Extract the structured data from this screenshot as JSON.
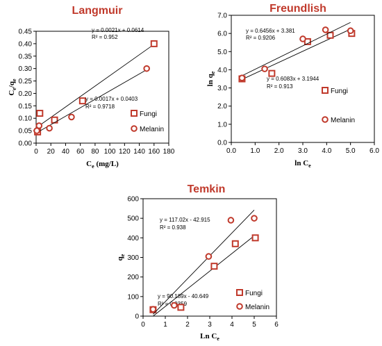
{
  "chart_data": [
    {
      "type": "scatter",
      "title": "Langmuir",
      "xlabel": "Ce (mg/L)",
      "ylabel": "Ce/qe",
      "xlim": [
        0,
        180
      ],
      "ylim": [
        0,
        0.45
      ],
      "xticks": [
        "0",
        "20",
        "40",
        "60",
        "80",
        "100",
        "120",
        "140",
        "160",
        "180"
      ],
      "yticks": [
        "0.00",
        "0.05",
        "0.10",
        "0.15",
        "0.20",
        "0.25",
        "0.30",
        "0.35",
        "0.40",
        "0.45"
      ],
      "legend_position": "bottom-right",
      "series": [
        {
          "name": "Fungi",
          "marker": "square",
          "x": [
            2,
            5,
            25,
            63,
            160
          ],
          "y": [
            0.045,
            0.12,
            0.093,
            0.17,
            0.4
          ],
          "fit": {
            "slope": 0.0021,
            "intercept": 0.0614,
            "equation": "y = 0.0021x + 0.0614",
            "r2": "R² = 0.952"
          }
        },
        {
          "name": "Melanin",
          "marker": "circle",
          "x": [
            1,
            4,
            18,
            48,
            150
          ],
          "y": [
            0.05,
            0.07,
            0.06,
            0.105,
            0.3
          ],
          "fit": {
            "slope": 0.0017,
            "intercept": 0.0403,
            "equation": "y = 0.0017x + 0.0403",
            "r2": "R² = 0.9718"
          }
        }
      ]
    },
    {
      "type": "scatter",
      "title": "Freundlish",
      "xlabel": "ln Ce",
      "ylabel": "ln qe",
      "xlim": [
        0,
        6
      ],
      "ylim": [
        0,
        7
      ],
      "xticks": [
        "0.0",
        "1.0",
        "2.0",
        "3.0",
        "4.0",
        "5.0",
        "6.0"
      ],
      "yticks": [
        "0.0",
        "1.0",
        "2.0",
        "3.0",
        "4.0",
        "5.0",
        "6.0",
        "7.0"
      ],
      "legend_position": "right",
      "series": [
        {
          "name": "Fungi",
          "marker": "square",
          "x": [
            0.45,
            1.7,
            3.2,
            4.15,
            5.05
          ],
          "y": [
            3.5,
            3.8,
            5.55,
            5.9,
            6.0
          ],
          "fit": {
            "slope": 0.6083,
            "intercept": 3.1944,
            "equation": "y = 0.6083x + 3.1944",
            "r2": "R² = 0.913"
          }
        },
        {
          "name": "Melanin",
          "marker": "circle",
          "x": [
            0.45,
            1.4,
            3.0,
            3.95,
            5.0
          ],
          "y": [
            3.55,
            4.05,
            5.7,
            6.2,
            6.15
          ],
          "fit": {
            "slope": 0.6456,
            "intercept": 3.381,
            "equation": "y = 0.6456x + 3.381",
            "r2": "R² = 0.9206"
          }
        }
      ]
    },
    {
      "type": "scatter",
      "title": "Temkin",
      "xlabel": "Ln Ce",
      "ylabel": "qe",
      "xlim": [
        0,
        6
      ],
      "ylim": [
        0,
        600
      ],
      "xticks": [
        "0",
        "1",
        "2",
        "3",
        "4",
        "5",
        "6"
      ],
      "yticks": [
        "0",
        "100",
        "200",
        "300",
        "400",
        "500",
        "600"
      ],
      "legend_position": "bottom-right",
      "series": [
        {
          "name": "Fungi",
          "marker": "square",
          "x": [
            0.45,
            1.7,
            3.2,
            4.15,
            5.05
          ],
          "y": [
            33,
            45,
            255,
            370,
            400
          ],
          "fit": {
            "slope": 90.189,
            "intercept": -40.649,
            "equation": "y = 90.189x - 40.649",
            "r2": "R² = 0.9359"
          }
        },
        {
          "name": "Melanin",
          "marker": "circle",
          "x": [
            0.45,
            1.4,
            2.95,
            3.95,
            5.0
          ],
          "y": [
            35,
            55,
            305,
            490,
            500
          ],
          "fit": {
            "slope": 117.02,
            "intercept": -42.915,
            "equation": "y = 117.02x - 42.915",
            "r2": "R² = 0.938"
          }
        }
      ]
    }
  ],
  "colors": {
    "title": "#c0392b",
    "marker": "#c0392b",
    "line": "#000000"
  }
}
